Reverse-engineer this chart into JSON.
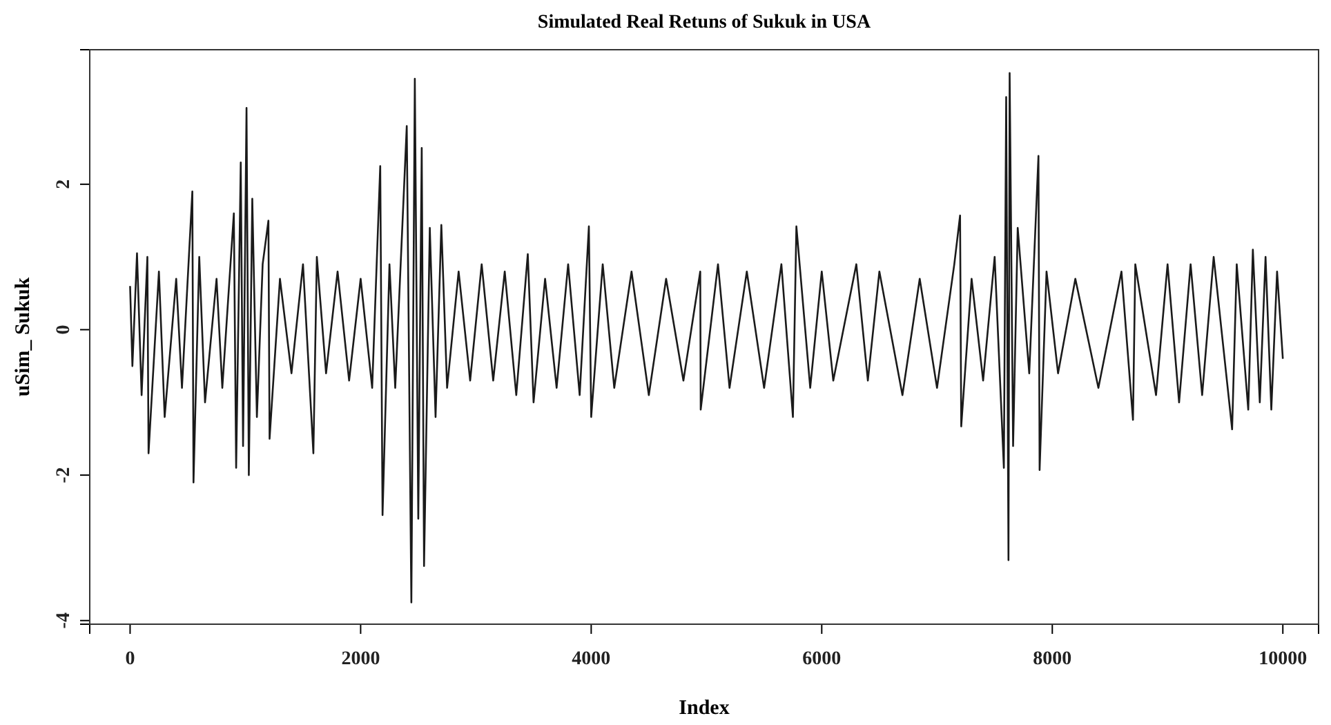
{
  "chart_data": {
    "type": "line",
    "title": "Simulated Real Retuns of Sukuk in USA",
    "xlabel": "Index",
    "ylabel": "uSim_ Sukuk",
    "xlim": [
      -350,
      10310
    ],
    "ylim": [
      -4.05,
      3.85
    ],
    "xticks": [
      0,
      2000,
      4000,
      6000,
      8000,
      10000
    ],
    "yticks": [
      -4,
      -2,
      0,
      2
    ],
    "marker": "none",
    "line_style": "solid",
    "series": [
      {
        "color": "#1a1a1a",
        "x": [
          0,
          20,
          60,
          100,
          150,
          160,
          250,
          300,
          400,
          450,
          540,
          550,
          600,
          650,
          750,
          800,
          900,
          920,
          960,
          980,
          1010,
          1030,
          1060,
          1100,
          1150,
          1200,
          1210,
          1300,
          1400,
          1500,
          1590,
          1620,
          1700,
          1800,
          1900,
          2000,
          2100,
          2170,
          2190,
          2250,
          2300,
          2400,
          2440,
          2470,
          2500,
          2530,
          2550,
          2600,
          2650,
          2700,
          2750,
          2850,
          2950,
          3050,
          3150,
          3250,
          3350,
          3450,
          3500,
          3600,
          3700,
          3800,
          3900,
          3980,
          4000,
          4100,
          4200,
          4350,
          4500,
          4650,
          4800,
          4946,
          4950,
          5100,
          5200,
          5350,
          5500,
          5650,
          5750,
          5780,
          5900,
          6000,
          6100,
          6300,
          6400,
          6500,
          6700,
          6850,
          7000,
          7150,
          7200,
          7210,
          7300,
          7400,
          7500,
          7580,
          7600,
          7620,
          7630,
          7660,
          7700,
          7800,
          7880,
          7890,
          7950,
          8050,
          8200,
          8400,
          8600,
          8700,
          8720,
          8900,
          9000,
          9100,
          9200,
          9300,
          9400,
          9560,
          9600,
          9700,
          9740,
          9800,
          9850,
          9900,
          9950,
          10000
        ],
        "values": [
          0.6,
          -0.5,
          1.05,
          -0.9,
          1.0,
          -1.7,
          0.8,
          -1.2,
          0.7,
          -0.8,
          1.9,
          -2.1,
          1.0,
          -1.0,
          0.7,
          -0.8,
          1.6,
          -1.9,
          2.3,
          -1.6,
          3.05,
          -2.0,
          1.8,
          -1.2,
          0.9,
          1.5,
          -1.5,
          0.7,
          -0.6,
          0.9,
          -1.7,
          1.0,
          -0.6,
          0.8,
          -0.7,
          0.7,
          -0.8,
          2.25,
          -2.55,
          0.9,
          -0.8,
          2.8,
          -3.75,
          3.45,
          -2.6,
          2.5,
          -3.25,
          1.4,
          -1.2,
          1.44,
          -0.8,
          0.8,
          -0.7,
          0.9,
          -0.7,
          0.8,
          -0.9,
          1.04,
          -1.0,
          0.7,
          -0.8,
          0.9,
          -0.9,
          1.42,
          -1.2,
          0.9,
          -0.8,
          0.8,
          -0.9,
          0.7,
          -0.7,
          0.8,
          -1.1,
          0.9,
          -0.8,
          0.8,
          -0.8,
          0.9,
          -1.2,
          1.42,
          -0.8,
          0.8,
          -0.7,
          0.9,
          -0.7,
          0.8,
          -0.9,
          0.7,
          -0.8,
          0.9,
          1.57,
          -1.33,
          0.7,
          -0.7,
          1.0,
          -1.9,
          3.2,
          -3.17,
          3.53,
          -1.6,
          1.4,
          -0.6,
          2.39,
          -1.93,
          0.8,
          -0.6,
          0.7,
          -0.8,
          0.8,
          -1.24,
          0.9,
          -0.9,
          0.9,
          -1.0,
          0.9,
          -0.9,
          1.0,
          -1.37,
          0.9,
          -1.1,
          1.1,
          -1.0,
          1.0,
          -1.1,
          0.8,
          -0.4
        ]
      }
    ]
  }
}
